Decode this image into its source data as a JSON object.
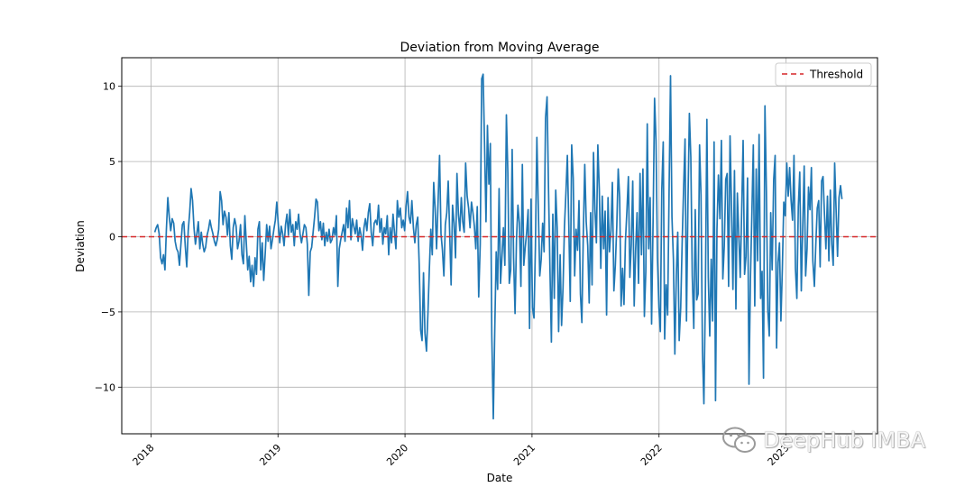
{
  "chart_data": {
    "type": "line",
    "title": "Deviation from Moving Average",
    "xlabel": "Date",
    "ylabel": "Deviation",
    "x_ticks": [
      "2018",
      "2019",
      "2020",
      "2021",
      "2022",
      "2023"
    ],
    "y_ticks": [
      -10,
      -5,
      0,
      5,
      10
    ],
    "xlim": [
      2017.77,
      2023.72
    ],
    "ylim": [
      -13.1,
      11.9
    ],
    "grid": true,
    "legend_position": "top-right",
    "threshold": {
      "name": "Threshold",
      "value": 0,
      "color": "#d62728",
      "style": "dashed"
    },
    "series": [
      {
        "name": "Deviation",
        "color": "#1f77b4",
        "x_start": 2018.03,
        "x_end": 2023.44,
        "values": [
          0.3,
          0.6,
          0.8,
          0.2,
          -1.4,
          -1.8,
          -1.2,
          -2.2,
          0.5,
          2.6,
          1.3,
          0.4,
          1.2,
          0.9,
          -0.3,
          -0.8,
          -1.0,
          -1.9,
          -0.5,
          0.8,
          1.0,
          -0.6,
          -2.0,
          0.4,
          1.6,
          3.2,
          2.4,
          0.6,
          -0.5,
          0.2,
          1.0,
          -0.8,
          0.3,
          -0.5,
          -1.0,
          -0.7,
          0.1,
          0.5,
          1.1,
          0.6,
          0.2,
          -0.3,
          -0.6,
          -0.2,
          0.5,
          3.0,
          2.4,
          0.8,
          1.7,
          1.3,
          0.1,
          1.6,
          -0.6,
          -1.5,
          0.6,
          1.2,
          0.7,
          -0.8,
          -0.3,
          0.8,
          -1.2,
          -1.8,
          1.4,
          -0.4,
          -2.2,
          -1.3,
          -3.0,
          -1.9,
          -3.3,
          -1.4,
          -2.5,
          0.5,
          1.0,
          -2.2,
          -0.4,
          -2.9,
          -1.2,
          0.8,
          -0.3,
          0.7,
          -0.8,
          -0.2,
          0.5,
          1.1,
          2.3,
          0.9,
          -0.4,
          0.7,
          0.2,
          -0.6,
          0.8,
          1.5,
          0.1,
          1.8,
          0.3,
          0.8,
          -0.6,
          1.0,
          0.5,
          1.5,
          0.2,
          -0.4,
          0.2,
          0.8,
          0.6,
          -0.5,
          -3.9,
          -1.0,
          -0.7,
          0.3,
          1.3,
          2.5,
          2.3,
          0.4,
          1.0,
          -0.2,
          0.9,
          -0.6,
          0.3,
          -0.3,
          0.5,
          -0.4,
          -0.2,
          0.6,
          0.1,
          1.4,
          -3.3,
          -0.8,
          -0.2,
          0.3,
          0.8,
          -0.3,
          1.9,
          0.6,
          2.4,
          -0.2,
          1.2,
          0.7,
          0.2,
          1.1,
          -0.3,
          0.6,
          0.1,
          -0.9,
          0.6,
          1.2,
          0.4,
          1.6,
          2.2,
          0.3,
          -0.6,
          0.9,
          1.1,
          0.8,
          2.1,
          0.3,
          1.2,
          -0.5,
          0.6,
          0.2,
          1.4,
          -1.2,
          0.6,
          -0.4,
          1.5,
          0.3,
          -0.8,
          2.4,
          1.3,
          1.9,
          0.6,
          1.1,
          0.4,
          2.0,
          3.0,
          1.3,
          0.9,
          2.4,
          0.6,
          -0.4,
          0.8,
          1.3,
          -1.8,
          -6.2,
          -6.9,
          -2.4,
          -6.4,
          -7.6,
          -5.1,
          -2.1,
          0.5,
          -1.2,
          3.6,
          1.9,
          -0.8,
          2.2,
          5.4,
          0.2,
          -0.9,
          -2.6,
          0.8,
          1.6,
          3.7,
          0.3,
          -3.2,
          2.1,
          0.9,
          -1.4,
          4.2,
          1.5,
          0.4,
          2.6,
          1.0,
          0.3,
          4.9,
          2.7,
          1.9,
          0.6,
          2.3,
          1.6,
          0.7,
          -0.8,
          2.0,
          -4.0,
          -0.5,
          10.5,
          10.8,
          6.1,
          1.0,
          7.4,
          3.5,
          6.2,
          -6.5,
          -12.1,
          -6.2,
          -1.0,
          -3.5,
          3.2,
          -3.1,
          -1.3,
          0.6,
          -1.9,
          8.1,
          4.3,
          -3.1,
          -2.2,
          5.8,
          -1.4,
          -5.1,
          -0.2,
          2.1,
          0.9,
          -3.3,
          4.8,
          -1.9,
          -0.7,
          0.3,
          1.8,
          -6.1,
          2.5,
          -4.7,
          -5.4,
          -0.6,
          6.6,
          1.9,
          -2.6,
          -1.5,
          0.9,
          -1.0,
          7.9,
          9.3,
          3.2,
          -2.1,
          -7.0,
          1.5,
          -4.1,
          3.1,
          0.6,
          -6.3,
          -1.2,
          -5.9,
          -3.4,
          0.7,
          2.9,
          5.4,
          0.8,
          -4.3,
          6.1,
          3.9,
          -2.6,
          0.5,
          -0.9,
          2.4,
          -3.8,
          -5.7,
          0.2,
          4.8,
          1.0,
          -0.6,
          -4.4,
          1.6,
          -3.2,
          5.6,
          1.8,
          -0.4,
          6.1,
          3.2,
          -2.1,
          2.7,
          -0.8,
          1.7,
          -5.2,
          2.6,
          -1.0,
          0.4,
          3.6,
          -3.6,
          -1.9,
          0.7,
          4.5,
          2.6,
          -4.6,
          -2.1,
          -4.5,
          -0.3,
          1.8,
          4.0,
          -2.7,
          -0.5,
          3.7,
          -4.6,
          -0.9,
          1.6,
          -3.1,
          4.2,
          -1.2,
          4.5,
          -5.3,
          -2.3,
          7.5,
          -0.8,
          2.6,
          -5.8,
          1.2,
          9.2,
          6.4,
          -1.4,
          -4.7,
          -6.3,
          3.1,
          6.3,
          -6.8,
          -3.2,
          -5.2,
          3.0,
          10.7,
          1.3,
          -1.5,
          -7.8,
          -2.6,
          0.3,
          -6.9,
          -4.7,
          -0.4,
          3.2,
          6.5,
          -5.6,
          2.1,
          8.2,
          5.3,
          -2.6,
          -6.1,
          1.8,
          -4.2,
          -3.8,
          6.1,
          2.8,
          -7.6,
          -11.1,
          -4.1,
          7.8,
          -2.7,
          -6.6,
          -1.5,
          -5.6,
          6.3,
          -10.9,
          0.5,
          4.1,
          1.2,
          6.4,
          -2.8,
          -0.6,
          3.8,
          4.2,
          -3.3,
          6.7,
          2.1,
          -3.5,
          4.4,
          -4.8,
          2.9,
          0.1,
          -2.7,
          1.7,
          6.4,
          -2.5,
          -1.3,
          3.9,
          -9.8,
          -2.8,
          1.5,
          6.1,
          -4.6,
          4.5,
          -1.6,
          6.8,
          -4.1,
          -2.3,
          -9.4,
          8.7,
          3.1,
          -4.9,
          -6.6,
          1.6,
          -2.2,
          3.8,
          5.4,
          -7.4,
          -1.7,
          -0.4,
          -5.6,
          -2.1,
          2.3,
          1.4,
          4.9,
          2.7,
          4.6,
          2.4,
          1.1,
          5.4,
          -2.1,
          -4.1,
          2.0,
          4.3,
          -3.6,
          0.6,
          4.7,
          -2.6,
          -0.8,
          3.3,
          1.8,
          4.6,
          -1.6,
          -3.3,
          -0.5,
          1.9,
          2.4,
          -2.0,
          3.7,
          4.0,
          1.5,
          -0.8,
          2.7,
          -1.6,
          3.1,
          -0.5,
          -1.9,
          4.9,
          1.8,
          -1.3,
          2.6,
          3.4,
          2.5
        ]
      }
    ]
  },
  "watermark": {
    "text": "DeepHub IMBA",
    "icon": "wechat-icon"
  }
}
